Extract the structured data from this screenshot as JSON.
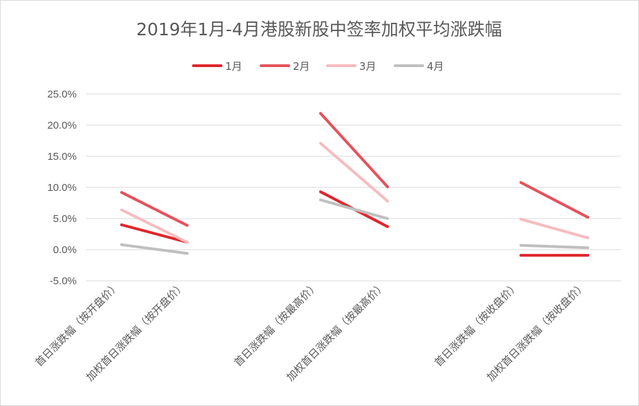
{
  "chart_data": {
    "type": "line",
    "title": "2019年1月-4月港股新股中签率加权平均涨跌幅",
    "categories": [
      "首日涨跌幅（按开盘价）",
      "加权首日涨跌幅（按开盘价）",
      "首日涨跌幅（按最高价）",
      "加权首日涨跌幅（按最高价）",
      "首日涨跌幅（按收盘价）",
      "加权首日涨跌幅（按收盘价）"
    ],
    "groups": [
      [
        0,
        1
      ],
      [
        2,
        3
      ],
      [
        4,
        5
      ]
    ],
    "y_ticks": [
      "25.0%",
      "20.0%",
      "15.0%",
      "10.0%",
      "5.0%",
      "0.0%",
      "-5.0%"
    ],
    "ylim": [
      -5,
      25
    ],
    "grid": true,
    "legend_position": "top",
    "series": [
      {
        "name": "1月",
        "color": "#e0262c",
        "values": [
          4.0,
          1.2,
          9.3,
          3.7,
          -0.9,
          -0.9
        ]
      },
      {
        "name": "2月",
        "color": "#e5525b",
        "values": [
          9.2,
          3.9,
          21.9,
          10.1,
          10.8,
          5.2
        ]
      },
      {
        "name": "3月",
        "color": "#f6bcbf",
        "values": [
          6.4,
          1.2,
          17.1,
          7.8,
          4.9,
          1.9
        ]
      },
      {
        "name": "4月",
        "color": "#bfbfbf",
        "values": [
          0.8,
          -0.6,
          8.0,
          5.0,
          0.7,
          0.3
        ]
      }
    ]
  }
}
